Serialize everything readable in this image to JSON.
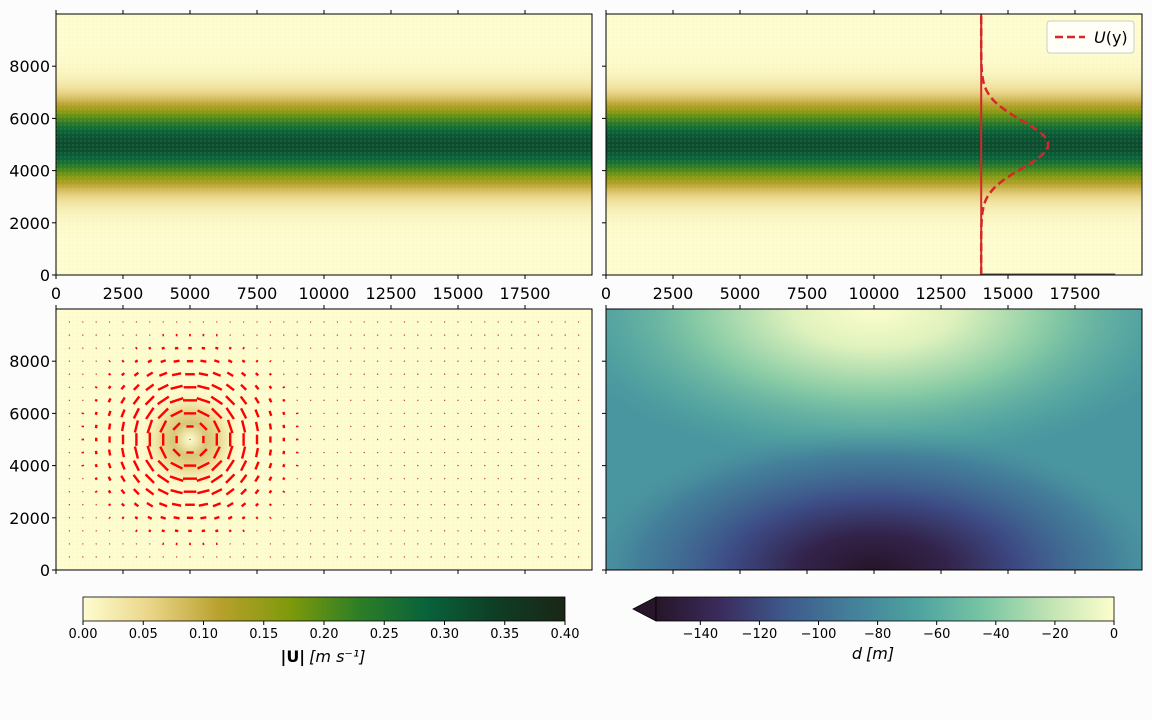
{
  "chart_data": [
    {
      "panel": "top-left",
      "type": "heatmap",
      "field": "|U| speed",
      "colormap": "speed (yellow to dark green)",
      "xlim": [
        0,
        20000
      ],
      "ylim": [
        0,
        10000
      ],
      "xticks": [
        0,
        2500,
        5000,
        7500,
        10000,
        12500,
        15000,
        17500
      ],
      "xtick_labels": [
        "0",
        "2500",
        "5000",
        "7500",
        "10000",
        "12500",
        "15000",
        "17500"
      ],
      "yticks": [
        0,
        2000,
        4000,
        6000,
        8000
      ],
      "ytick_labels": [
        "0",
        "2000",
        "4000",
        "6000",
        "8000"
      ],
      "jet": {
        "center_y": 5000,
        "width": 1500,
        "max_speed": 0.32,
        "orientation": "horizontal"
      }
    },
    {
      "panel": "top-right",
      "type": "heatmap",
      "field": "|U| speed",
      "xlim": [
        0,
        20000
      ],
      "ylim": [
        0,
        10000
      ],
      "xticks": [
        0,
        2500,
        5000,
        7500,
        10000,
        12500,
        15000,
        17500
      ],
      "xtick_labels": [
        "0",
        "2500",
        "5000",
        "7500",
        "10000",
        "12500",
        "15000",
        "17500"
      ],
      "yticks": [
        0,
        2000,
        4000,
        6000,
        8000
      ],
      "ytick_labels": [],
      "jet": {
        "center_y": 5000,
        "width": 1500,
        "max_speed": 0.32,
        "orientation": "horizontal"
      },
      "series": [
        {
          "name": "U(y)",
          "style": "dashed",
          "color": "#d62728",
          "baseline_x": 14000,
          "peak_x": 16500,
          "center_y": 5000,
          "width": 1300
        }
      ],
      "reference_line": {
        "x": 14000,
        "color": "#d62728"
      },
      "legend": {
        "label_base": "U",
        "label_arg": "(y)",
        "placement": "upper right"
      }
    },
    {
      "panel": "bottom-left",
      "type": "heatmap",
      "field": "|U| speed with velocity vectors",
      "xlim": [
        0,
        20000
      ],
      "ylim": [
        0,
        10000
      ],
      "yticks": [
        0,
        2000,
        4000,
        6000,
        8000
      ],
      "ytick_labels": [
        "0",
        "2000",
        "4000",
        "6000",
        "8000"
      ],
      "vortex": {
        "center_x": 5000,
        "center_y": 5000,
        "radius": 1500,
        "max_speed": 0.06
      },
      "quiver": {
        "color": "red",
        "spacing": 500
      }
    },
    {
      "panel": "bottom-right",
      "type": "heatmap",
      "field": "depth d",
      "colormap": "deep (dark purple to pale yellow)",
      "xlim": [
        0,
        20000
      ],
      "ylim": [
        0,
        10000
      ],
      "vmin": -155,
      "vmax": 0,
      "yticks": [
        0,
        2000,
        4000,
        6000,
        8000
      ],
      "ytick_labels": [],
      "depth_model": {
        "min": -155,
        "deep_center_x": 10000,
        "deep_center_y": 0,
        "shallow_center_y": 10000
      }
    }
  ],
  "colorbars": {
    "speed": {
      "label_main": "|U|",
      "label_unit": "[m s⁻¹]",
      "ticks": [
        "0.00",
        "0.05",
        "0.10",
        "0.15",
        "0.20",
        "0.25",
        "0.30",
        "0.35",
        "0.40"
      ],
      "range": [
        0,
        0.4
      ]
    },
    "depth": {
      "label_main": "d",
      "label_unit": "[m]",
      "ticks": [
        "−140",
        "−120",
        "−100",
        "−80",
        "−60",
        "−40",
        "−20",
        "0"
      ],
      "tick_values": [
        -140,
        -120,
        -100,
        -80,
        -60,
        -40,
        -20,
        0
      ],
      "range": [
        -155,
        0
      ],
      "extend": "min"
    }
  },
  "colors": {
    "speed_stops": [
      "#fefdd0",
      "#e9d486",
      "#b7a02c",
      "#7f9a0b",
      "#2e7e26",
      "#08623b",
      "#0f3d25",
      "#1a2616"
    ],
    "depth_stops": [
      "#271529",
      "#3b2c5e",
      "#3e5a8c",
      "#44809a",
      "#4ea3a0",
      "#78c5a4",
      "#bfe3b2",
      "#fdfecc"
    ],
    "accent_red": "#d62728"
  }
}
